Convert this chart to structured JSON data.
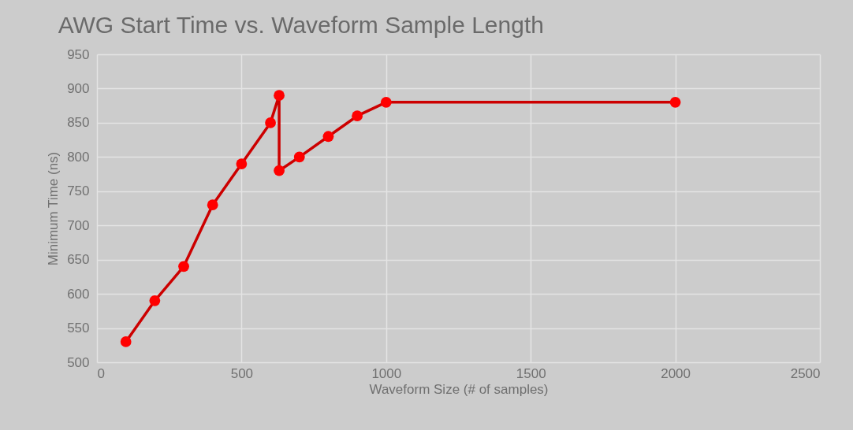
{
  "chart_data": {
    "type": "line",
    "title": "AWG Start Time vs. Waveform Sample Length",
    "xlabel": "Waveform Size (# of samples)",
    "ylabel": "Minimum Time (ns)",
    "x": [
      100,
      200,
      300,
      400,
      500,
      600,
      630,
      630,
      700,
      800,
      900,
      1000,
      2000
    ],
    "series": [
      {
        "color": "#cc0000",
        "values": [
          530,
          590,
          640,
          730,
          790,
          850,
          890,
          780,
          800,
          830,
          860,
          880,
          880
        ]
      }
    ],
    "xlim": [
      0,
      2500
    ],
    "xticks": [
      0,
      500,
      1000,
      1500,
      2000,
      2500
    ],
    "ylim": [
      500,
      950
    ],
    "yticks": [
      500,
      550,
      600,
      650,
      700,
      750,
      800,
      850,
      900,
      950
    ],
    "grid": true,
    "marker": "circle",
    "line_style": "solid",
    "legend": false
  }
}
